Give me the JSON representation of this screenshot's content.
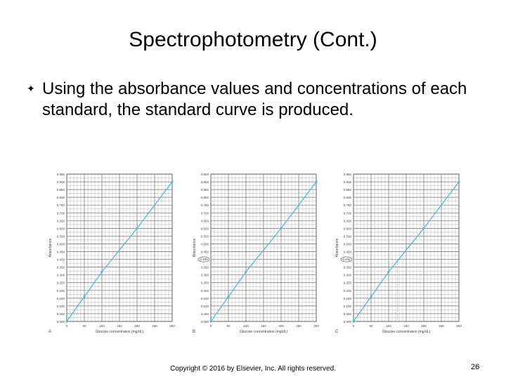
{
  "slide": {
    "title": "Spectrophotometry (Cont.)",
    "bullet_icon": "bullet-glyph",
    "bullet": "Using the absorbance values and concentrations of each standard, the standard curve is produced.",
    "footer": "Copyright © 2016 by Elsevier, Inc. All rights reserved.",
    "page_number": "26"
  },
  "colors": {
    "grid": "#9a9a9a",
    "line": "#5ab7c9",
    "guide": "#8fcbd6",
    "text": "#444444"
  },
  "chart_data": [
    {
      "type": "line",
      "label": "A",
      "xlabel": "Glucose concentration (mg/dL)",
      "ylabel": "Absorbance",
      "xticks": [
        0,
        50,
        100,
        150,
        200,
        250,
        300
      ],
      "yticks": [
        0,
        0.05,
        0.1,
        0.15,
        0.2,
        0.25,
        0.3,
        0.35,
        0.4,
        0.45,
        0.5,
        0.55,
        0.6,
        0.65,
        0.7,
        0.75,
        0.8,
        0.85,
        0.9,
        0.95
      ],
      "xlim": [
        0,
        300
      ],
      "ylim": [
        0,
        0.95
      ],
      "x": [
        0,
        50,
        100,
        200,
        300
      ],
      "y": [
        0,
        0.16,
        0.32,
        0.6,
        0.9
      ],
      "highlight": null
    },
    {
      "type": "line",
      "label": "B",
      "xlabel": "Glucose concentration (mg/dL)",
      "ylabel": "Absorbance",
      "xticks": [
        0,
        50,
        100,
        150,
        200,
        250,
        300
      ],
      "yticks": [
        0,
        0.05,
        0.1,
        0.15,
        0.2,
        0.25,
        0.3,
        0.35,
        0.4,
        0.45,
        0.5,
        0.55,
        0.6,
        0.65,
        0.7,
        0.75,
        0.8,
        0.85,
        0.9,
        0.95
      ],
      "xlim": [
        0,
        300
      ],
      "ylim": [
        0,
        0.95
      ],
      "x": [
        0,
        50,
        100,
        200,
        300
      ],
      "y": [
        0,
        0.16,
        0.32,
        0.6,
        0.9
      ],
      "highlight": {
        "y": 0.4,
        "x": null
      }
    },
    {
      "type": "line",
      "label": "C",
      "xlabel": "Glucose concentration (mg/dL)",
      "ylabel": "Absorbance",
      "xticks": [
        0,
        50,
        100,
        150,
        200,
        250,
        300
      ],
      "yticks": [
        0,
        0.05,
        0.1,
        0.15,
        0.2,
        0.25,
        0.3,
        0.35,
        0.4,
        0.45,
        0.5,
        0.55,
        0.6,
        0.65,
        0.7,
        0.75,
        0.8,
        0.85,
        0.9,
        0.95
      ],
      "xlim": [
        0,
        300
      ],
      "ylim": [
        0,
        0.95
      ],
      "x": [
        0,
        50,
        100,
        200,
        300
      ],
      "y": [
        0,
        0.16,
        0.32,
        0.6,
        0.9
      ],
      "highlight": {
        "y": 0.4,
        "x": 125
      }
    }
  ]
}
